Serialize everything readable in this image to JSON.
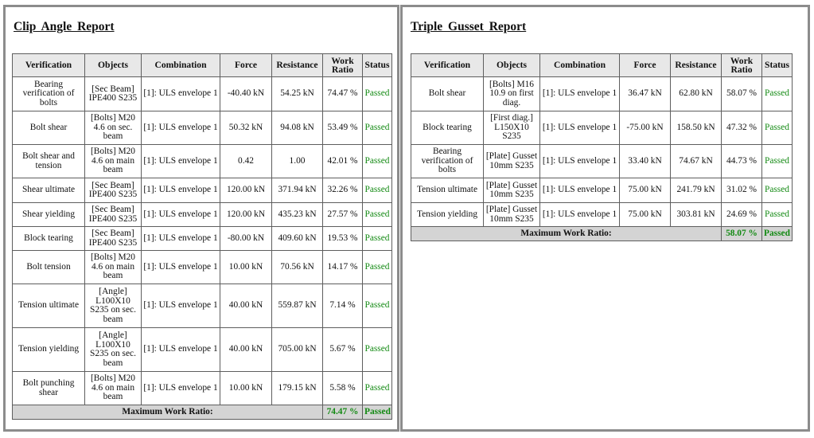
{
  "clip_angle": {
    "title": "Clip Angle Report",
    "headers": [
      "Verification",
      "Objects",
      "Combination",
      "Force",
      "Resistance",
      "Work Ratio",
      "Status"
    ],
    "rows": [
      {
        "verification": "Bearing verification of bolts",
        "objects": "[Sec Beam] IPE400 S235",
        "combination": "[1]: ULS envelope 1",
        "force": "-40.40 kN",
        "resistance": "54.25 kN",
        "work_ratio": "74.47 %",
        "status": "Passed"
      },
      {
        "verification": "Bolt shear",
        "objects": "[Bolts] M20 4.6 on sec. beam",
        "combination": "[1]: ULS envelope 1",
        "force": "50.32 kN",
        "resistance": "94.08 kN",
        "work_ratio": "53.49 %",
        "status": "Passed"
      },
      {
        "verification": "Bolt shear and tension",
        "objects": "[Bolts] M20 4.6 on main beam",
        "combination": "[1]: ULS envelope 1",
        "force": "0.42",
        "resistance": "1.00",
        "work_ratio": "42.01 %",
        "status": "Passed"
      },
      {
        "verification": "Shear ultimate",
        "objects": "[Sec Beam] IPE400 S235",
        "combination": "[1]: ULS envelope 1",
        "force": "120.00 kN",
        "resistance": "371.94 kN",
        "work_ratio": "32.26 %",
        "status": "Passed"
      },
      {
        "verification": "Shear yielding",
        "objects": "[Sec Beam] IPE400 S235",
        "combination": "[1]: ULS envelope 1",
        "force": "120.00 kN",
        "resistance": "435.23 kN",
        "work_ratio": "27.57 %",
        "status": "Passed"
      },
      {
        "verification": "Block tearing",
        "objects": "[Sec Beam] IPE400 S235",
        "combination": "[1]: ULS envelope 1",
        "force": "-80.00 kN",
        "resistance": "409.60 kN",
        "work_ratio": "19.53 %",
        "status": "Passed"
      },
      {
        "verification": "Bolt tension",
        "objects": "[Bolts] M20 4.6 on main beam",
        "combination": "[1]: ULS envelope 1",
        "force": "10.00 kN",
        "resistance": "70.56 kN",
        "work_ratio": "14.17 %",
        "status": "Passed"
      },
      {
        "verification": "Tension ultimate",
        "objects": "[Angle] L100X10 S235 on sec. beam",
        "combination": "[1]: ULS envelope 1",
        "force": "40.00 kN",
        "resistance": "559.87 kN",
        "work_ratio": "7.14 %",
        "status": "Passed"
      },
      {
        "verification": "Tension yielding",
        "objects": "[Angle] L100X10 S235 on sec. beam",
        "combination": "[1]: ULS envelope 1",
        "force": "40.00 kN",
        "resistance": "705.00 kN",
        "work_ratio": "5.67 %",
        "status": "Passed"
      },
      {
        "verification": "Bolt punching shear",
        "objects": "[Bolts] M20 4.6 on main beam",
        "combination": "[1]: ULS envelope 1",
        "force": "10.00 kN",
        "resistance": "179.15 kN",
        "work_ratio": "5.58 %",
        "status": "Passed"
      }
    ],
    "max_label": "Maximum Work Ratio:",
    "max_value": "74.47 %",
    "max_status": "Passed"
  },
  "triple_gusset": {
    "title": "Triple Gusset Report",
    "headers": [
      "Verification",
      "Objects",
      "Combination",
      "Force",
      "Resistance",
      "Work Ratio",
      "Status"
    ],
    "rows": [
      {
        "verification": "Bolt shear",
        "objects": "[Bolts] M16 10.9 on first diag.",
        "combination": "[1]: ULS envelope 1",
        "force": "36.47 kN",
        "resistance": "62.80 kN",
        "work_ratio": "58.07 %",
        "status": "Passed"
      },
      {
        "verification": "Block tearing",
        "objects": "[First diag.] L150X10 S235",
        "combination": "[1]: ULS envelope 1",
        "force": "-75.00 kN",
        "resistance": "158.50 kN",
        "work_ratio": "47.32 %",
        "status": "Passed"
      },
      {
        "verification": "Bearing verification of bolts",
        "objects": "[Plate] Gusset 10mm S235",
        "combination": "[1]: ULS envelope 1",
        "force": "33.40 kN",
        "resistance": "74.67 kN",
        "work_ratio": "44.73 %",
        "status": "Passed"
      },
      {
        "verification": "Tension ultimate",
        "objects": "[Plate] Gusset 10mm S235",
        "combination": "[1]: ULS envelope 1",
        "force": "75.00 kN",
        "resistance": "241.79 kN",
        "work_ratio": "31.02 %",
        "status": "Passed"
      },
      {
        "verification": "Tension yielding",
        "objects": "[Plate] Gusset 10mm S235",
        "combination": "[1]: ULS envelope 1",
        "force": "75.00 kN",
        "resistance": "303.81 kN",
        "work_ratio": "24.69 %",
        "status": "Passed"
      }
    ],
    "max_label": "Maximum Work Ratio:",
    "max_value": "58.07 %",
    "max_status": "Passed"
  }
}
